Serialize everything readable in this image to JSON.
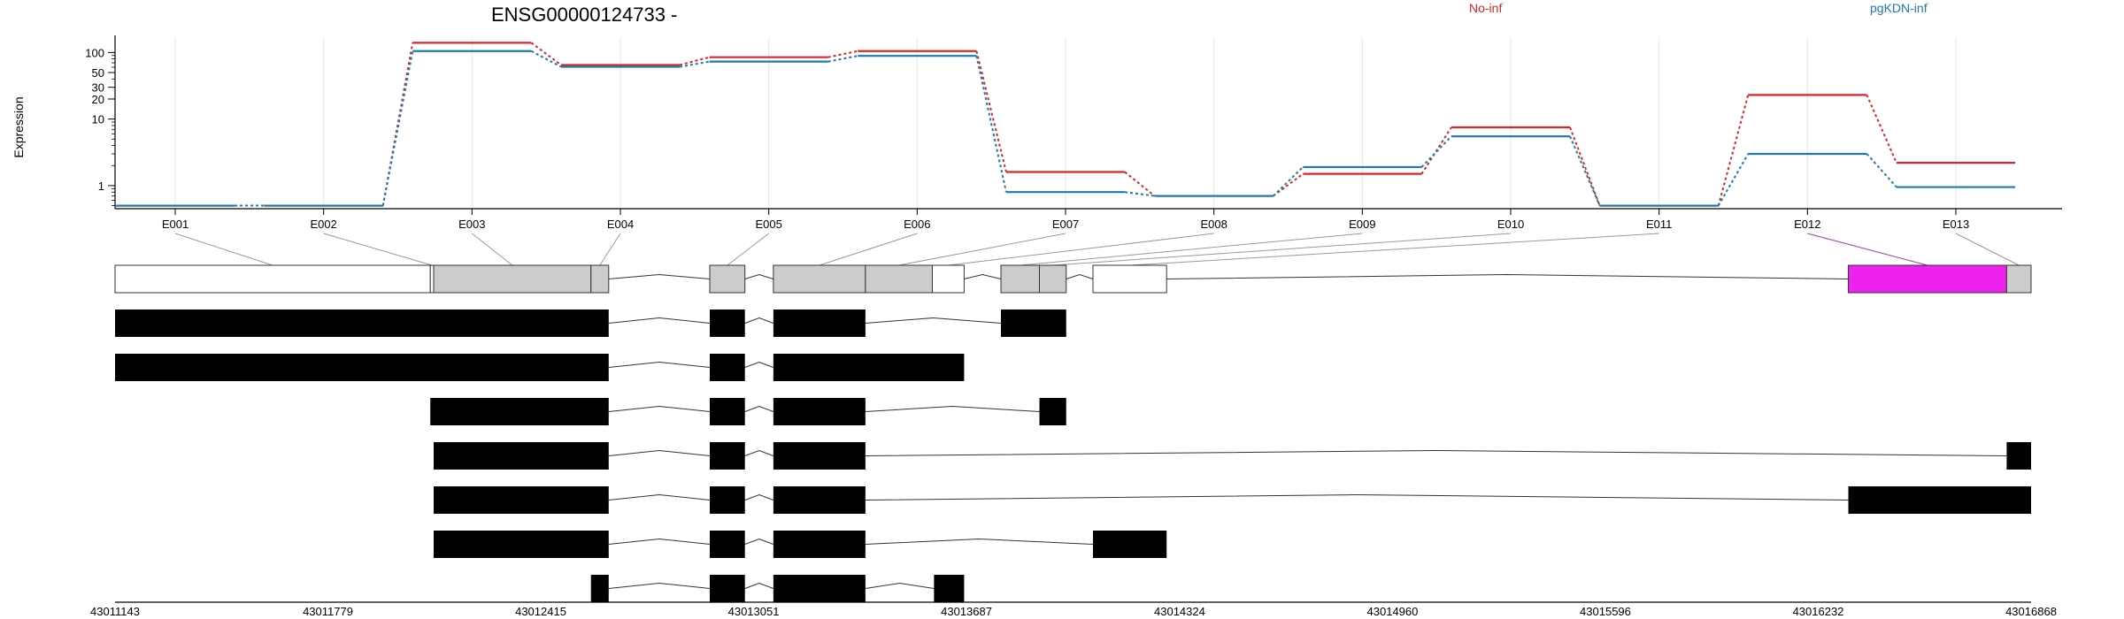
{
  "chart_data": {
    "type": "line",
    "title": "ENSG00000124733 -",
    "ylabel": "Expression",
    "y_scale": "log",
    "y_ticks": [
      1,
      10,
      20,
      30,
      50,
      100
    ],
    "ylim": [
      0.45,
      160
    ],
    "grid": true,
    "legend_placement": "top-right",
    "categories": [
      "E001",
      "E002",
      "E003",
      "E004",
      "E005",
      "E006",
      "E007",
      "E008",
      "E009",
      "E010",
      "E011",
      "E012",
      "E013"
    ],
    "series": [
      {
        "name": "No-inf",
        "color": "#d62728",
        "values": [
          0.5,
          0.5,
          140,
          65,
          85,
          105,
          1.6,
          0.7,
          1.5,
          7.5,
          0.5,
          23,
          2.2
        ]
      },
      {
        "name": "pgKDN-inf",
        "color": "#1f77b4",
        "values": [
          0.5,
          0.5,
          105,
          61,
          73,
          89,
          0.8,
          0.7,
          1.9,
          5.5,
          0.5,
          3.0,
          0.95
        ]
      }
    ],
    "gene_model": {
      "region_start": 43011143,
      "region_end": 43016868,
      "genomic_ticks": [
        43011143,
        43011779,
        43012415,
        43013051,
        43013687,
        43014324,
        43014960,
        43015596,
        43016232,
        43016868
      ],
      "exon_bins": [
        {
          "id": "E001",
          "start": 43011143,
          "end": 43012085,
          "fill": "#ffffff"
        },
        {
          "id": "E002",
          "start": 43012085,
          "end": 43012095,
          "fill": "#ffffff"
        },
        {
          "id": "E003",
          "start": 43012095,
          "end": 43012565,
          "fill": "#cccccc"
        },
        {
          "id": "E004",
          "start": 43012565,
          "end": 43012618,
          "fill": "#cccccc"
        },
        {
          "id": "E005",
          "start": 43012920,
          "end": 43013025,
          "fill": "#cccccc"
        },
        {
          "id": "E006",
          "start": 43013110,
          "end": 43013385,
          "fill": "#cccccc"
        },
        {
          "id": "E007",
          "start": 43013385,
          "end": 43013585,
          "fill": "#cccccc"
        },
        {
          "id": "E008",
          "start": 43013585,
          "end": 43013680,
          "fill": "#ffffff"
        },
        {
          "id": "E009",
          "start": 43013790,
          "end": 43013905,
          "fill": "#cccccc"
        },
        {
          "id": "E010",
          "start": 43013905,
          "end": 43013985,
          "fill": "#cccccc"
        },
        {
          "id": "E011",
          "start": 43014065,
          "end": 43014285,
          "fill": "#ffffff"
        },
        {
          "id": "E012",
          "start": 43016322,
          "end": 43016795,
          "fill": "#ee22ee"
        },
        {
          "id": "E013",
          "start": 43016795,
          "end": 43016868,
          "fill": "#cccccc"
        }
      ],
      "transcripts": [
        [
          [
            43011143,
            43012618
          ],
          [
            43012920,
            43013025
          ],
          [
            43013110,
            43013385
          ],
          [
            43013790,
            43013985
          ]
        ],
        [
          [
            43011143,
            43012618
          ],
          [
            43012920,
            43013025
          ],
          [
            43013110,
            43013680
          ]
        ],
        [
          [
            43012085,
            43012618
          ],
          [
            43012920,
            43013025
          ],
          [
            43013110,
            43013385
          ],
          [
            43013905,
            43013985
          ]
        ],
        [
          [
            43012095,
            43012618
          ],
          [
            43012920,
            43013025
          ],
          [
            43013110,
            43013385
          ],
          [
            43016795,
            43016868
          ]
        ],
        [
          [
            43012095,
            43012618
          ],
          [
            43012920,
            43013025
          ],
          [
            43013110,
            43013385
          ],
          [
            43016322,
            43016868
          ]
        ],
        [
          [
            43012095,
            43012618
          ],
          [
            43012920,
            43013025
          ],
          [
            43013110,
            43013385
          ],
          [
            43014065,
            43014285
          ]
        ],
        [
          [
            43012565,
            43012618
          ],
          [
            43012920,
            43013025
          ],
          [
            43013110,
            43013385
          ],
          [
            43013590,
            43013680
          ]
        ]
      ]
    }
  }
}
